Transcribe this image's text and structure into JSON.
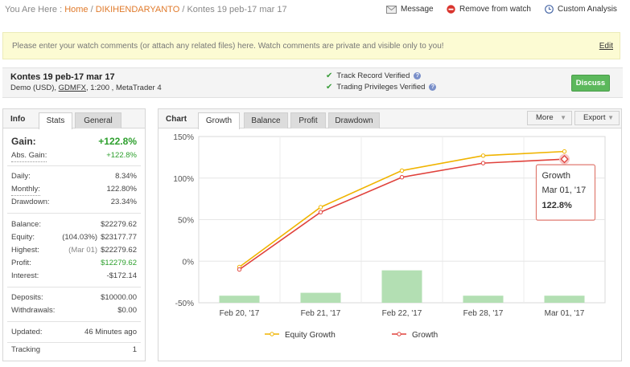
{
  "breadcrumb": {
    "prefix": "You Are Here :",
    "home": "Home",
    "sep1": "/",
    "user": "DIKIHENDARYANTO",
    "sep2": "/",
    "current": "Kontes 19 peb-17 mar 17"
  },
  "actions": {
    "message": "Message",
    "remove": "Remove from watch",
    "custom": "Custom Analysis"
  },
  "notice": {
    "text": "Please enter your watch comments (or attach any related files) here. Watch comments are private and visible only to you!",
    "edit": "Edit"
  },
  "account": {
    "name": "Kontes 19 peb-17 mar 17",
    "meta_prefix": "Demo (USD),",
    "broker": "GDMFX",
    "meta_suffix": ", 1:200 , MetaTrader 4",
    "track_record": "Track Record Verified",
    "trading_privileges": "Trading Privileges Verified",
    "discuss": "Discuss"
  },
  "info": {
    "title": "Info",
    "tabs": [
      "Stats",
      "General"
    ],
    "gain_label": "Gain:",
    "gain_value": "+122.8%",
    "abs_gain_label": "Abs. Gain:",
    "abs_gain_value": "+122.8%",
    "daily_label": "Daily:",
    "daily_value": "8.34%",
    "monthly_label": "Monthly:",
    "monthly_value": "122.80%",
    "drawdown_label": "Drawdown:",
    "drawdown_value": "23.34%",
    "balance_label": "Balance:",
    "balance_value": "$22279.62",
    "equity_label": "Equity:",
    "equity_pct": "(104.03%)",
    "equity_value": "$23177.77",
    "highest_label": "Highest:",
    "highest_date": "(Mar 01)",
    "highest_value": "$22279.62",
    "profit_label": "Profit:",
    "profit_value": "$12279.62",
    "interest_label": "Interest:",
    "interest_value": "-$172.14",
    "deposits_label": "Deposits:",
    "deposits_value": "$10000.00",
    "withdrawals_label": "Withdrawals:",
    "withdrawals_value": "$0.00",
    "updated_label": "Updated:",
    "updated_value": "46 Minutes ago",
    "tracking_label": "Tracking",
    "tracking_value": "1"
  },
  "chart_panel": {
    "title": "Chart",
    "tabs": [
      "Growth",
      "Balance",
      "Profit",
      "Drawdown"
    ],
    "more": "More",
    "export": "Export"
  },
  "chart_data": {
    "type": "line",
    "categories": [
      "Feb 20, '17",
      "Feb 21, '17",
      "Feb 22, '17",
      "Feb 28, '17",
      "Mar 01, '17"
    ],
    "ylim": [
      -50,
      150
    ],
    "yticks": [
      "150%",
      "100%",
      "50%",
      "0%",
      "-50%"
    ],
    "series": [
      {
        "name": "Equity Growth",
        "color": "#f0b400",
        "values": [
          -7,
          65,
          109,
          127,
          132
        ]
      },
      {
        "name": "Growth",
        "color": "#e0423c",
        "values": [
          -10,
          59,
          101,
          118,
          122.8
        ]
      }
    ],
    "bars": {
      "color": "#b3dfb3",
      "values": [
        -41.5,
        -38,
        -11,
        -41.5,
        -41.5
      ]
    },
    "tooltip": {
      "title": "Growth",
      "date": "Mar 01, '17",
      "value": "122.8%"
    },
    "grid": true,
    "legend_position": "bottom"
  },
  "colors": {
    "link": "#e07a2b",
    "green": "#2ea02e",
    "discuss": "#5cb85c",
    "notice_bg": "#fcfbd3"
  }
}
